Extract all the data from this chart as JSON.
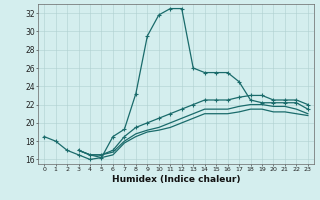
{
  "xlabel": "Humidex (Indice chaleur)",
  "ylabel": "",
  "xlim": [
    -0.5,
    23.5
  ],
  "ylim": [
    15.5,
    33
  ],
  "xticks": [
    0,
    1,
    2,
    3,
    4,
    5,
    6,
    7,
    8,
    9,
    10,
    11,
    12,
    13,
    14,
    15,
    16,
    17,
    18,
    19,
    20,
    21,
    22,
    23
  ],
  "yticks": [
    16,
    18,
    20,
    22,
    24,
    26,
    28,
    30,
    32
  ],
  "bg_color": "#d4eeee",
  "line_color": "#1a6b6b",
  "line1_x": [
    0,
    1,
    2,
    3,
    4,
    5,
    6,
    7,
    8,
    9,
    10,
    11,
    12,
    13,
    14,
    15,
    16,
    17,
    18,
    19,
    20,
    21,
    22,
    23
  ],
  "line1_y": [
    18.5,
    18.0,
    17.0,
    16.5,
    16.0,
    16.2,
    18.5,
    19.3,
    23.2,
    29.5,
    31.8,
    32.5,
    32.5,
    26.0,
    25.5,
    25.5,
    25.5,
    24.5,
    22.5,
    22.2,
    22.2,
    22.2,
    22.2,
    21.5
  ],
  "line2_x": [
    3,
    4,
    5,
    6,
    7,
    8,
    9,
    10,
    11,
    12,
    13,
    14,
    15,
    16,
    17,
    18,
    19,
    20,
    21,
    22,
    23
  ],
  "line2_y": [
    17.0,
    16.5,
    16.5,
    17.0,
    18.5,
    19.5,
    20.0,
    20.5,
    21.0,
    21.5,
    22.0,
    22.5,
    22.5,
    22.5,
    22.8,
    23.0,
    23.0,
    22.5,
    22.5,
    22.5,
    22.0
  ],
  "line3_x": [
    3,
    4,
    5,
    6,
    7,
    8,
    9,
    10,
    11,
    12,
    13,
    14,
    15,
    16,
    17,
    18,
    19,
    20,
    21,
    22,
    23
  ],
  "line3_y": [
    17.0,
    16.5,
    16.5,
    16.8,
    18.0,
    18.8,
    19.2,
    19.5,
    20.0,
    20.5,
    21.0,
    21.5,
    21.5,
    21.5,
    21.8,
    22.0,
    22.0,
    21.8,
    21.8,
    21.5,
    21.0
  ],
  "line4_x": [
    3,
    4,
    5,
    6,
    7,
    8,
    9,
    10,
    11,
    12,
    13,
    14,
    15,
    16,
    17,
    18,
    19,
    20,
    21,
    22,
    23
  ],
  "line4_y": [
    17.0,
    16.5,
    16.2,
    16.5,
    17.8,
    18.5,
    19.0,
    19.2,
    19.5,
    20.0,
    20.5,
    21.0,
    21.0,
    21.0,
    21.2,
    21.5,
    21.5,
    21.2,
    21.2,
    21.0,
    20.8
  ]
}
